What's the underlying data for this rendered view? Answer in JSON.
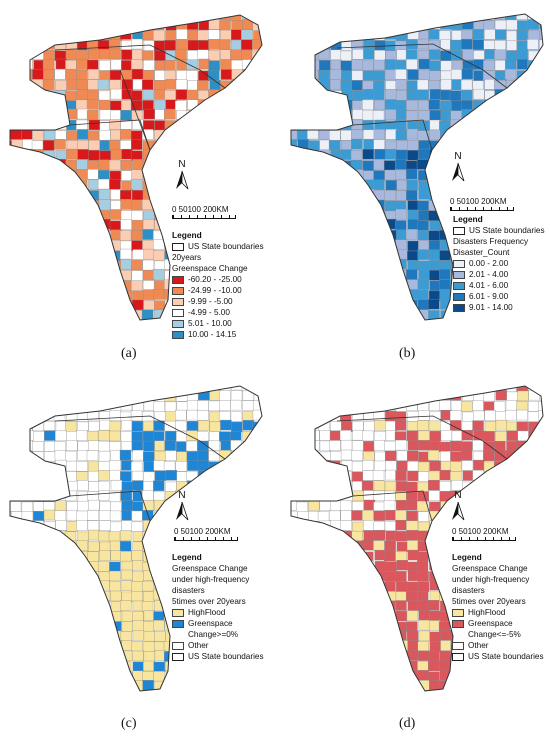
{
  "panels": [
    {
      "id": "a",
      "caption": "(a)",
      "north": "N",
      "scale_ticks": "0 50100   200KM",
      "legend": {
        "title": "Legend",
        "lines": [
          "20years",
          "Greenspace Change"
        ],
        "items": [
          {
            "label": "US State boundaries",
            "color": "#ffffff",
            "outline": true
          },
          {
            "label": "-60.20 - -25.00",
            "color": "#d7191c"
          },
          {
            "label": "-24.99 - -10.00",
            "color": "#f08a55"
          },
          {
            "label": "-9.99 - -5.00",
            "color": "#fbcdb3"
          },
          {
            "label": "-4.99 - 5.00",
            "color": "#ffffff"
          },
          {
            "label": "5.01 - 10.00",
            "color": "#a6cee3"
          },
          {
            "label": "10.00 - 14.15",
            "color": "#2c8fc6"
          }
        ]
      }
    },
    {
      "id": "b",
      "caption": "(b)",
      "north": "N",
      "scale_ticks": "0 50100   200KM",
      "legend": {
        "title": "Legend",
        "lines": [
          "Disasters Frequency",
          "Disaster_Count"
        ],
        "items": [
          {
            "label": "US State boundaries",
            "color": "#ffffff",
            "outline": true
          },
          {
            "label": "0.00 - 2.00",
            "color": "#eef0f8"
          },
          {
            "label": "2.01 - 4.00",
            "color": "#a8b9dd"
          },
          {
            "label": "4.01 - 6.00",
            "color": "#3d9bd3"
          },
          {
            "label": "6.01 - 9.00",
            "color": "#1f78bd"
          },
          {
            "label": "9.01 - 14.00",
            "color": "#0b4a8a"
          }
        ]
      }
    },
    {
      "id": "c",
      "caption": "(c)",
      "north": "N",
      "scale_ticks": "0 50100   200KM",
      "legend": {
        "title": "Legend",
        "lines": [
          "Greenspace Change",
          "under high-frequency",
          "disasters",
          "5times over 20years"
        ],
        "items": [
          {
            "label": "HighFlood",
            "color": "#f8e5a0"
          },
          {
            "label": "Greenspace Change>=0%",
            "color": "#1f86d6"
          },
          {
            "label": "Other",
            "color": "#ffffff"
          },
          {
            "label": "US State boundaries",
            "color": "#ffffff",
            "outline": true
          }
        ]
      }
    },
    {
      "id": "d",
      "caption": "(d)",
      "north": "N",
      "scale_ticks": "0 50100   200KM",
      "legend": {
        "title": "Legend",
        "lines": [
          "Greenspace Change",
          "under high-frequency",
          "disasters",
          "5times over 20years"
        ],
        "items": [
          {
            "label": "HighFlood",
            "color": "#f8e5a0"
          },
          {
            "label": "Greenspace Change<=-5%",
            "color": "#d9575d"
          },
          {
            "label": "Other",
            "color": "#ffffff"
          },
          {
            "label": "US State boundaries",
            "color": "#ffffff",
            "outline": true
          }
        ]
      }
    }
  ]
}
